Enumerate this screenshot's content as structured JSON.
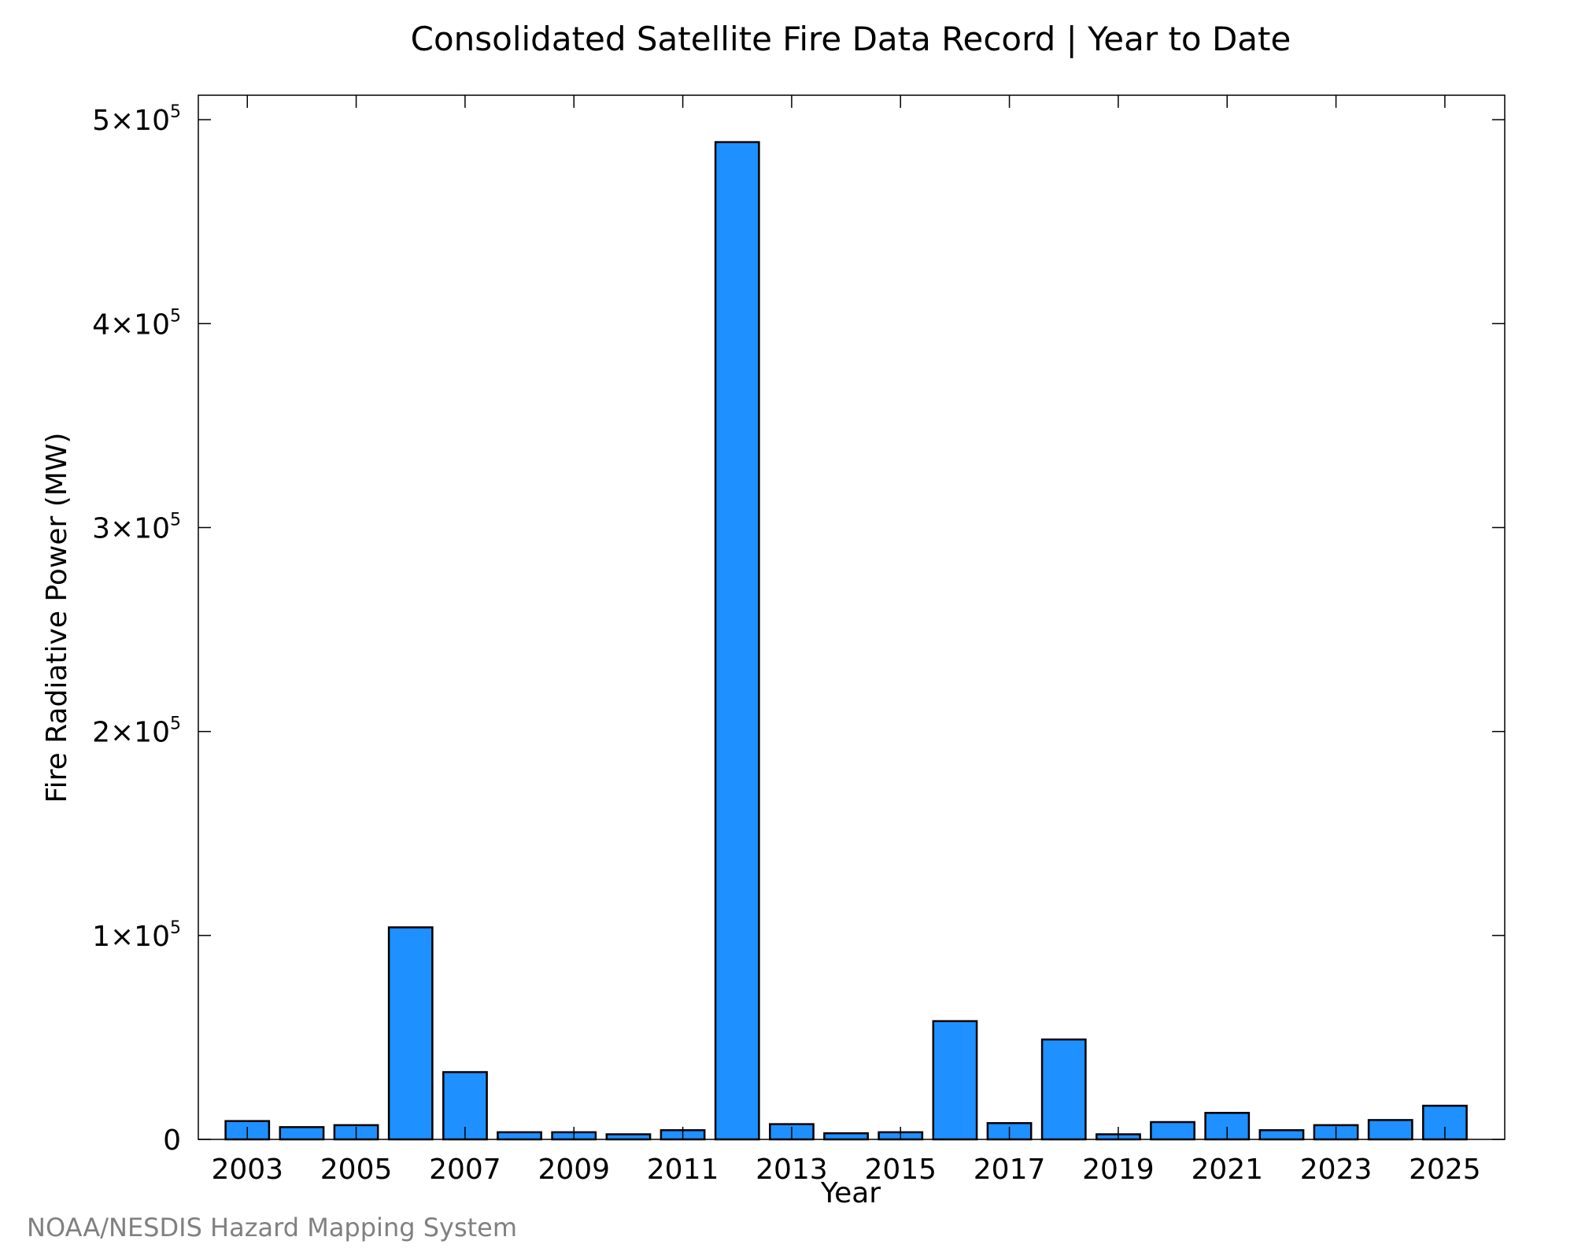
{
  "credit": "NOAA/NESDIS Hazard Mapping System",
  "chart_data": {
    "type": "bar",
    "title": "Consolidated Satellite Fire Data Record | Year to Date",
    "xlabel": "Year",
    "ylabel": "Fire Radiative Power (MW)",
    "categories": [
      "2003",
      "2004",
      "2005",
      "2006",
      "2007",
      "2008",
      "2009",
      "2010",
      "2011",
      "2012",
      "2013",
      "2014",
      "2015",
      "2016",
      "2017",
      "2018",
      "2019",
      "2020",
      "2021",
      "2022",
      "2023",
      "2024",
      "2025"
    ],
    "values": [
      9000,
      6000,
      7000,
      104000,
      33000,
      3500,
      3500,
      2500,
      4500,
      489000,
      7500,
      3000,
      3500,
      58000,
      8000,
      49000,
      2500,
      8500,
      13000,
      4500,
      7000,
      9500,
      16500
    ],
    "x_tick_labels": [
      "2003",
      "2005",
      "2007",
      "2009",
      "2011",
      "2013",
      "2015",
      "2017",
      "2019",
      "2021",
      "2023",
      "2025"
    ],
    "y_ticks": [
      {
        "value": 0,
        "mantissa": "0",
        "exponent": ""
      },
      {
        "value": 100000,
        "mantissa": "1×10",
        "exponent": "5"
      },
      {
        "value": 200000,
        "mantissa": "2×10",
        "exponent": "5"
      },
      {
        "value": 300000,
        "mantissa": "3×10",
        "exponent": "5"
      },
      {
        "value": 400000,
        "mantissa": "4×10",
        "exponent": "5"
      },
      {
        "value": 500000,
        "mantissa": "5×10",
        "exponent": "5"
      }
    ],
    "ylim": [
      0,
      512000
    ],
    "xlim": [
      2002.1,
      2026.1
    ],
    "bar_color": "#1e90ff",
    "bar_edge_color": "#000000",
    "grid": false,
    "legend": "none"
  }
}
